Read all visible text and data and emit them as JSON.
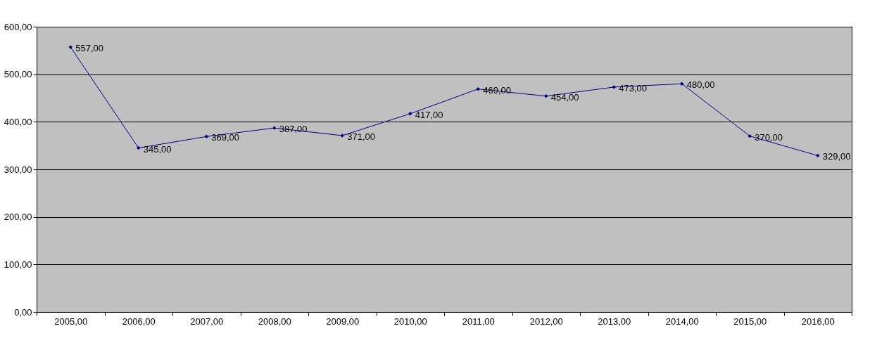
{
  "chart_data": {
    "type": "line",
    "categories": [
      "2005,00",
      "2006,00",
      "2007,00",
      "2008,00",
      "2009,00",
      "2010,00",
      "2011,00",
      "2012,00",
      "2013,00",
      "2014,00",
      "2015,00",
      "2016,00"
    ],
    "series": [
      {
        "color": "#000080",
        "values": [
          557,
          345,
          369,
          387,
          371,
          417,
          469,
          454,
          473,
          480,
          370,
          329
        ],
        "value_labels": [
          "557,00",
          "345,00",
          "369,00",
          "387,00",
          "371,00",
          "417,00",
          "469,00",
          "454,00",
          "473,00",
          "480,00",
          "370,00",
          "329,00"
        ]
      }
    ],
    "ylim": [
      0,
      600
    ],
    "yticks": [
      {
        "value": 0,
        "label": "0,00"
      },
      {
        "value": 100,
        "label": "100,00"
      },
      {
        "value": 200,
        "label": "200,00"
      },
      {
        "value": 300,
        "label": "300,00"
      },
      {
        "value": 400,
        "label": "400,00"
      },
      {
        "value": 500,
        "label": "500,00"
      },
      {
        "value": 600,
        "label": "600,00"
      }
    ],
    "grid": "y",
    "marker": "diamond",
    "line_style": "solid"
  }
}
